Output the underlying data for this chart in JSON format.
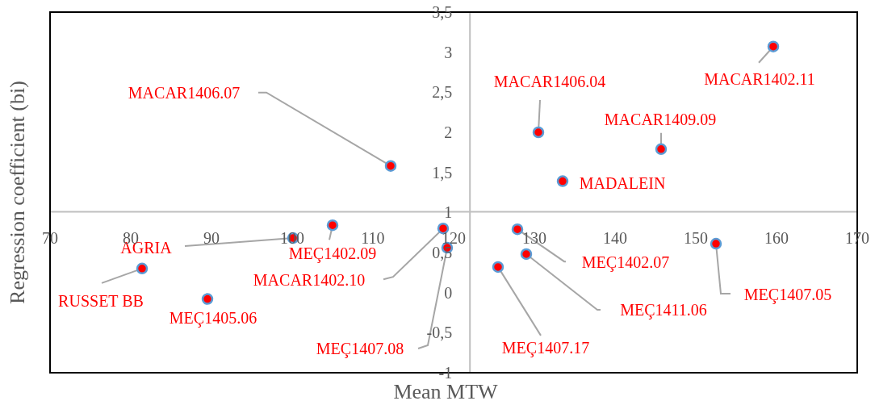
{
  "chart_data": {
    "type": "scatter",
    "xlabel": "Mean  MTW",
    "ylabel": "Regression coefficient (bi)",
    "xlim": [
      70,
      170
    ],
    "ylim": [
      -1,
      3.5
    ],
    "xticks": [
      70,
      80,
      90,
      100,
      110,
      120,
      130,
      140,
      150,
      160,
      170
    ],
    "yticks": [
      {
        "value": -1,
        "label": "-1"
      },
      {
        "value": -0.5,
        "label": "-0,5"
      },
      0,
      {
        "value": 0.5,
        "label": "0,5"
      },
      1,
      {
        "value": 1.5,
        "label": "1,5"
      },
      2,
      {
        "value": 2.5,
        "label": "2,5"
      },
      3,
      {
        "value": 3.5,
        "label": "3,5"
      }
    ],
    "grid": false,
    "marker": "circle",
    "series": [
      {
        "color": "#ff0000",
        "x": [
          159.6,
          130.5,
          145.7,
          133.5,
          112.2,
          105,
          100.1,
          81.4,
          89.5,
          118.7,
          119.2,
          127.9,
          129,
          125.5,
          152.5
        ],
        "values": [
          3.07,
          2,
          1.79,
          1.39,
          1.58,
          0.84,
          0.68,
          0.3,
          -0.08,
          0.8,
          0.56,
          0.79,
          0.48,
          0.32,
          0.61
        ]
      }
    ],
    "annotations": [
      {
        "text": "MACAR1402.11",
        "x": 159.6,
        "y": 3.07
      },
      {
        "text": "MACAR1406.04",
        "x": 130.5,
        "y": 2
      },
      {
        "text": "MACAR1409.09",
        "x": 145.7,
        "y": 1.79
      },
      {
        "text": "MADALEIN",
        "x": 133.5,
        "y": 1.39
      },
      {
        "text": "MACAR1406.07",
        "x": 112.2,
        "y": 1.58
      },
      {
        "text": "MEÇ1402.09",
        "x": 105,
        "y": 0.84
      },
      {
        "text": "AGRIA",
        "x": 100.1,
        "y": 0.68
      },
      {
        "text": "RUSSET BB",
        "x": 81.4,
        "y": 0.3
      },
      {
        "text": "MEÇ1405.06",
        "x": 89.5,
        "y": -0.08
      },
      {
        "text": "MACAR1402.10",
        "x": 118.7,
        "y": 0.8
      },
      {
        "text": "MEÇ1407.08",
        "x": 119.2,
        "y": 0.56
      },
      {
        "text": "MEÇ1402.07",
        "x": 127.9,
        "y": 0.79
      },
      {
        "text": "MEÇ1411.06",
        "x": 129,
        "y": 0.48
      },
      {
        "text": "MEÇ1407.17",
        "x": 125.5,
        "y": 0.32
      },
      {
        "text": "MEÇ1407.05",
        "x": 152.5,
        "y": 0.61
      }
    ]
  }
}
